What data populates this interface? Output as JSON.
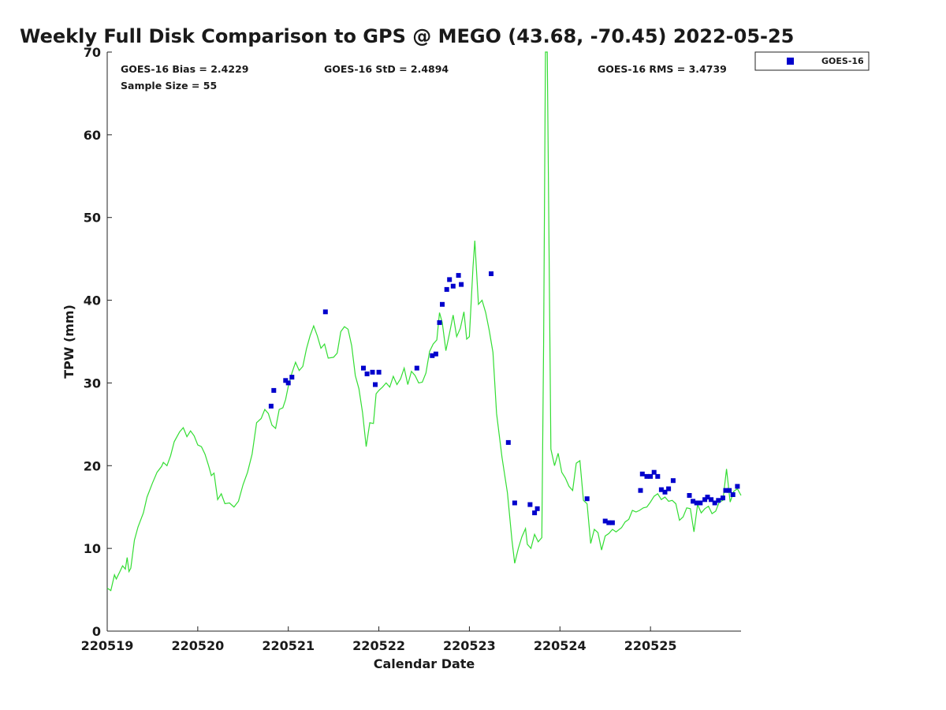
{
  "chart_data": {
    "type": "scatter",
    "title": "Weekly Full Disk Comparison to GPS @ MEGO (43.68, -70.45) 2022-05-25",
    "xlabel": "Calendar Date",
    "ylabel": "TPW (mm)",
    "xlim": [
      0,
      7
    ],
    "ylim": [
      0,
      70
    ],
    "x_ticks": [
      {
        "value": 0,
        "label": "220519"
      },
      {
        "value": 1,
        "label": "220520"
      },
      {
        "value": 2,
        "label": "220521"
      },
      {
        "value": 3,
        "label": "220522"
      },
      {
        "value": 4,
        "label": "220523"
      },
      {
        "value": 5,
        "label": "220524"
      },
      {
        "value": 6,
        "label": "220525"
      }
    ],
    "y_ticks": [
      0,
      10,
      20,
      30,
      40,
      50,
      60,
      70
    ],
    "grid": false,
    "legend_position": "outside-top-right",
    "stats": {
      "bias": "GOES-16 Bias = 2.4229",
      "std": "GOES-16 StD = 2.4894",
      "rms": "GOES-16 RMS = 3.4739",
      "sample": "Sample Size = 55"
    },
    "series": [
      {
        "name": "GOES-16",
        "kind": "scatter",
        "color": "#0000cc",
        "points": [
          [
            1.81,
            27.2
          ],
          [
            1.84,
            29.1
          ],
          [
            1.97,
            30.3
          ],
          [
            2.0,
            30.0
          ],
          [
            2.04,
            30.7
          ],
          [
            2.41,
            38.6
          ],
          [
            2.83,
            31.8
          ],
          [
            2.87,
            31.1
          ],
          [
            2.93,
            31.3
          ],
          [
            2.96,
            29.8
          ],
          [
            3.0,
            31.3
          ],
          [
            3.42,
            31.8
          ],
          [
            3.59,
            33.3
          ],
          [
            3.63,
            33.5
          ],
          [
            3.67,
            37.3
          ],
          [
            3.7,
            39.5
          ],
          [
            3.75,
            41.3
          ],
          [
            3.78,
            42.5
          ],
          [
            3.82,
            41.7
          ],
          [
            3.88,
            43.0
          ],
          [
            3.91,
            41.9
          ],
          [
            4.24,
            43.2
          ],
          [
            4.43,
            22.8
          ],
          [
            4.5,
            15.5
          ],
          [
            4.67,
            15.3
          ],
          [
            4.72,
            14.3
          ],
          [
            4.75,
            14.8
          ],
          [
            5.3,
            16.0
          ],
          [
            5.5,
            13.3
          ],
          [
            5.54,
            13.1
          ],
          [
            5.58,
            13.1
          ],
          [
            5.89,
            17.0
          ],
          [
            5.91,
            19.0
          ],
          [
            5.96,
            18.7
          ],
          [
            6.0,
            18.7
          ],
          [
            6.04,
            19.2
          ],
          [
            6.08,
            18.7
          ],
          [
            6.12,
            17.1
          ],
          [
            6.16,
            16.8
          ],
          [
            6.2,
            17.2
          ],
          [
            6.25,
            18.2
          ],
          [
            6.43,
            16.4
          ],
          [
            6.47,
            15.7
          ],
          [
            6.51,
            15.5
          ],
          [
            6.55,
            15.5
          ],
          [
            6.6,
            15.9
          ],
          [
            6.63,
            16.2
          ],
          [
            6.67,
            15.9
          ],
          [
            6.71,
            15.5
          ],
          [
            6.75,
            15.8
          ],
          [
            6.8,
            16.1
          ],
          [
            6.83,
            17.0
          ],
          [
            6.87,
            17.0
          ],
          [
            6.91,
            16.5
          ],
          [
            6.96,
            17.5
          ]
        ]
      },
      {
        "kind": "line",
        "color": "#33dd33",
        "points": [
          [
            0.0,
            5.2
          ],
          [
            0.04,
            4.9
          ],
          [
            0.08,
            6.8
          ],
          [
            0.1,
            6.3
          ],
          [
            0.14,
            7.2
          ],
          [
            0.17,
            7.9
          ],
          [
            0.2,
            7.5
          ],
          [
            0.22,
            8.9
          ],
          [
            0.24,
            7.2
          ],
          [
            0.26,
            7.6
          ],
          [
            0.3,
            11.0
          ],
          [
            0.34,
            12.6
          ],
          [
            0.4,
            14.3
          ],
          [
            0.44,
            16.2
          ],
          [
            0.5,
            17.9
          ],
          [
            0.55,
            19.2
          ],
          [
            0.6,
            19.9
          ],
          [
            0.62,
            20.4
          ],
          [
            0.66,
            20.0
          ],
          [
            0.7,
            21.2
          ],
          [
            0.74,
            22.9
          ],
          [
            0.8,
            24.1
          ],
          [
            0.84,
            24.6
          ],
          [
            0.88,
            23.5
          ],
          [
            0.92,
            24.2
          ],
          [
            0.96,
            23.6
          ],
          [
            1.0,
            22.5
          ],
          [
            1.04,
            22.3
          ],
          [
            1.08,
            21.4
          ],
          [
            1.12,
            20.0
          ],
          [
            1.15,
            18.8
          ],
          [
            1.18,
            19.1
          ],
          [
            1.22,
            15.9
          ],
          [
            1.26,
            16.6
          ],
          [
            1.3,
            15.4
          ],
          [
            1.35,
            15.5
          ],
          [
            1.4,
            15.0
          ],
          [
            1.45,
            15.7
          ],
          [
            1.5,
            17.7
          ],
          [
            1.55,
            19.2
          ],
          [
            1.6,
            21.4
          ],
          [
            1.65,
            25.2
          ],
          [
            1.7,
            25.7
          ],
          [
            1.74,
            26.8
          ],
          [
            1.78,
            26.3
          ],
          [
            1.82,
            24.9
          ],
          [
            1.86,
            24.5
          ],
          [
            1.9,
            26.8
          ],
          [
            1.94,
            27.0
          ],
          [
            1.97,
            28.0
          ],
          [
            2.0,
            29.6
          ],
          [
            2.04,
            31.2
          ],
          [
            2.08,
            32.5
          ],
          [
            2.12,
            31.5
          ],
          [
            2.16,
            32.0
          ],
          [
            2.2,
            34.1
          ],
          [
            2.24,
            35.7
          ],
          [
            2.28,
            36.9
          ],
          [
            2.32,
            35.7
          ],
          [
            2.36,
            34.2
          ],
          [
            2.4,
            34.7
          ],
          [
            2.44,
            33.0
          ],
          [
            2.5,
            33.1
          ],
          [
            2.54,
            33.6
          ],
          [
            2.58,
            36.2
          ],
          [
            2.62,
            36.8
          ],
          [
            2.66,
            36.5
          ],
          [
            2.7,
            34.5
          ],
          [
            2.74,
            30.9
          ],
          [
            2.78,
            29.3
          ],
          [
            2.82,
            26.4
          ],
          [
            2.86,
            22.3
          ],
          [
            2.9,
            25.2
          ],
          [
            2.94,
            25.1
          ],
          [
            2.97,
            28.7
          ],
          [
            3.0,
            29.1
          ],
          [
            3.04,
            29.5
          ],
          [
            3.08,
            30.0
          ],
          [
            3.12,
            29.5
          ],
          [
            3.16,
            30.8
          ],
          [
            3.2,
            29.8
          ],
          [
            3.24,
            30.5
          ],
          [
            3.28,
            31.8
          ],
          [
            3.32,
            29.8
          ],
          [
            3.36,
            31.4
          ],
          [
            3.4,
            30.9
          ],
          [
            3.44,
            30.0
          ],
          [
            3.48,
            30.1
          ],
          [
            3.52,
            31.2
          ],
          [
            3.56,
            33.8
          ],
          [
            3.6,
            34.7
          ],
          [
            3.64,
            35.2
          ],
          [
            3.67,
            38.5
          ],
          [
            3.7,
            37.3
          ],
          [
            3.74,
            33.9
          ],
          [
            3.78,
            36.0
          ],
          [
            3.82,
            38.2
          ],
          [
            3.86,
            35.6
          ],
          [
            3.9,
            36.6
          ],
          [
            3.94,
            38.6
          ],
          [
            3.97,
            35.3
          ],
          [
            4.0,
            35.6
          ],
          [
            4.04,
            44.0
          ],
          [
            4.06,
            47.2
          ],
          [
            4.1,
            39.5
          ],
          [
            4.14,
            40.0
          ],
          [
            4.18,
            38.5
          ],
          [
            4.22,
            36.3
          ],
          [
            4.26,
            33.7
          ],
          [
            4.3,
            26.3
          ],
          [
            4.36,
            21.0
          ],
          [
            4.42,
            16.7
          ],
          [
            4.47,
            11.0
          ],
          [
            4.5,
            8.2
          ],
          [
            4.54,
            10.0
          ],
          [
            4.58,
            11.4
          ],
          [
            4.62,
            12.4
          ],
          [
            4.64,
            10.5
          ],
          [
            4.68,
            10.0
          ],
          [
            4.72,
            11.7
          ],
          [
            4.76,
            10.8
          ],
          [
            4.8,
            11.3
          ],
          [
            4.82,
            35.0
          ],
          [
            4.84,
            70.0
          ],
          [
            4.86,
            70.0
          ],
          [
            4.88,
            46.0
          ],
          [
            4.9,
            22.0
          ],
          [
            4.94,
            20.0
          ],
          [
            4.98,
            21.5
          ],
          [
            5.02,
            19.2
          ],
          [
            5.06,
            18.5
          ],
          [
            5.1,
            17.5
          ],
          [
            5.14,
            17.0
          ],
          [
            5.18,
            20.3
          ],
          [
            5.22,
            20.6
          ],
          [
            5.26,
            15.8
          ],
          [
            5.3,
            15.4
          ],
          [
            5.34,
            10.6
          ],
          [
            5.38,
            12.3
          ],
          [
            5.42,
            11.9
          ],
          [
            5.46,
            9.8
          ],
          [
            5.5,
            11.5
          ],
          [
            5.54,
            11.8
          ],
          [
            5.58,
            12.3
          ],
          [
            5.62,
            12.0
          ],
          [
            5.68,
            12.5
          ],
          [
            5.72,
            13.2
          ],
          [
            5.76,
            13.5
          ],
          [
            5.8,
            14.6
          ],
          [
            5.84,
            14.4
          ],
          [
            5.88,
            14.6
          ],
          [
            5.92,
            14.9
          ],
          [
            5.96,
            15.0
          ],
          [
            6.0,
            15.6
          ],
          [
            6.04,
            16.3
          ],
          [
            6.08,
            16.6
          ],
          [
            6.12,
            15.9
          ],
          [
            6.16,
            16.2
          ],
          [
            6.2,
            15.7
          ],
          [
            6.24,
            15.8
          ],
          [
            6.28,
            15.4
          ],
          [
            6.32,
            13.4
          ],
          [
            6.36,
            13.8
          ],
          [
            6.4,
            14.9
          ],
          [
            6.44,
            14.8
          ],
          [
            6.48,
            12.0
          ],
          [
            6.52,
            15.3
          ],
          [
            6.56,
            14.3
          ],
          [
            6.6,
            14.8
          ],
          [
            6.64,
            15.1
          ],
          [
            6.68,
            14.2
          ],
          [
            6.72,
            14.5
          ],
          [
            6.76,
            15.6
          ],
          [
            6.8,
            15.8
          ],
          [
            6.84,
            19.6
          ],
          [
            6.88,
            15.6
          ],
          [
            6.92,
            16.9
          ],
          [
            6.96,
            17.2
          ],
          [
            7.0,
            16.4
          ]
        ]
      }
    ]
  }
}
